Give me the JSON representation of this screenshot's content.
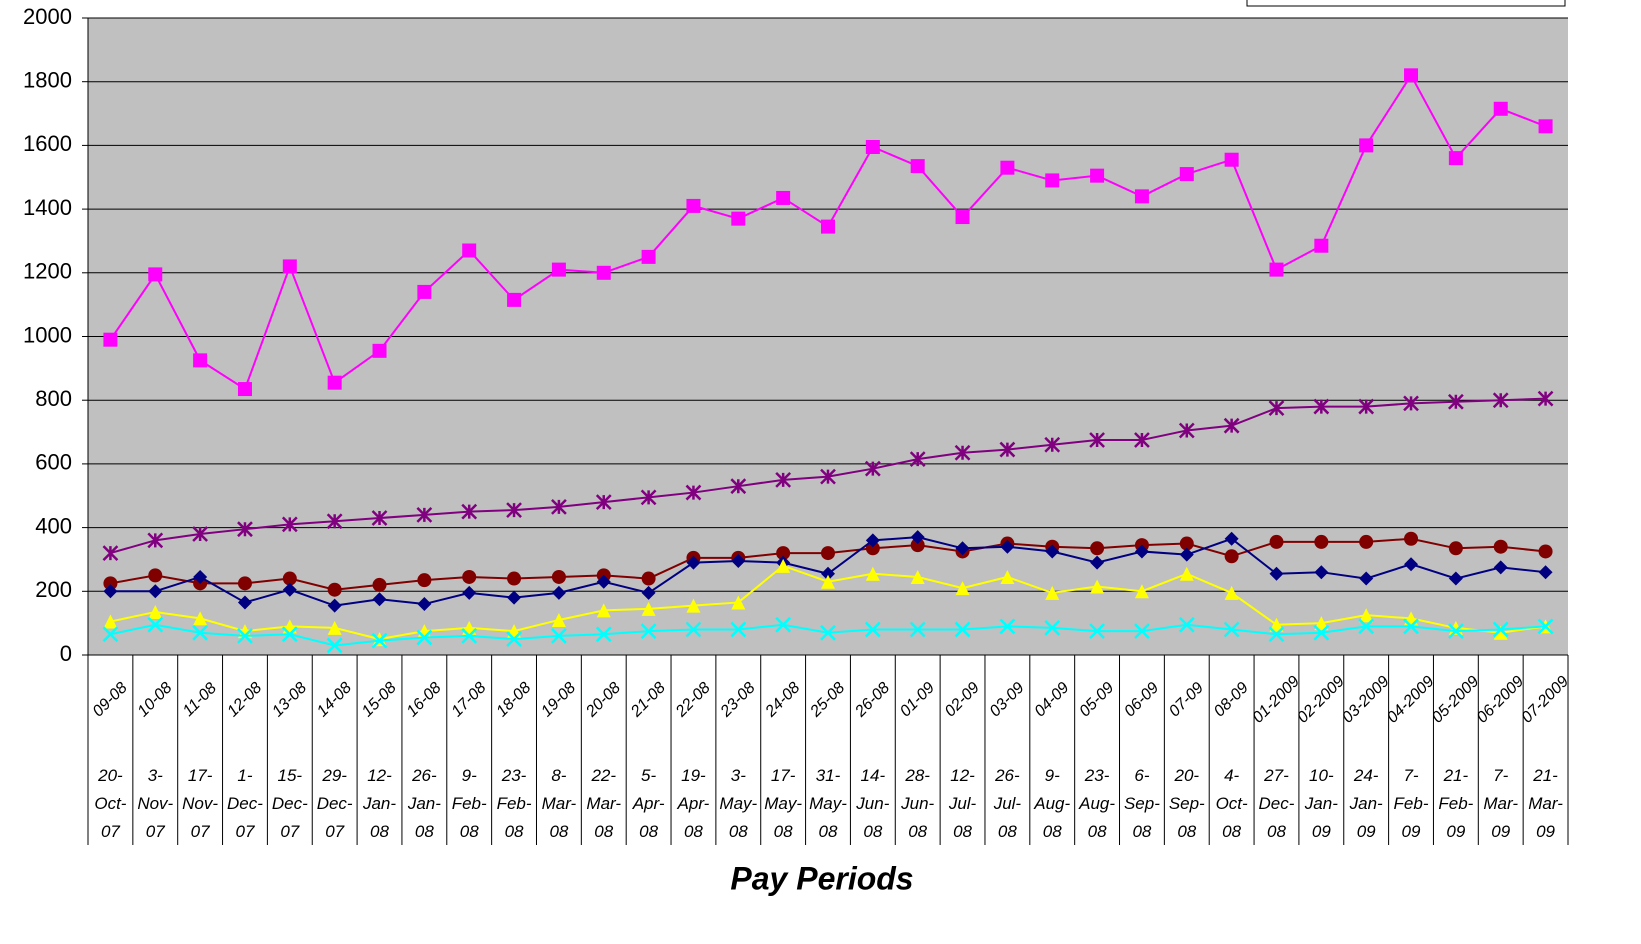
{
  "chart_data": {
    "type": "line",
    "x_axis_label": "Pay Periods",
    "categories": [
      "09-08",
      "10-08",
      "11-08",
      "12-08",
      "13-08",
      "14-08",
      "15-08",
      "16-08",
      "17-08",
      "18-08",
      "19-08",
      "20-08",
      "21-08",
      "22-08",
      "23-08",
      "24-08",
      "25-08",
      "26-08",
      "01-09",
      "02-09",
      "03-09",
      "04-09",
      "05-09",
      "06-09",
      "07-09",
      "08-09",
      "01-2009",
      "02-2009",
      "03-2009",
      "04-2009",
      "05-2009",
      "06-2009",
      "07-2009"
    ],
    "dates": [
      "20-Oct-07",
      "3-Nov-07",
      "17-Nov-07",
      "1-Dec-07",
      "15-Dec-07",
      "29-Dec-07",
      "12-Jan-08",
      "26-Jan-08",
      "9-Feb-08",
      "23-Feb-08",
      "8-Mar-08",
      "22-Mar-08",
      "5-Apr-08",
      "19-Apr-08",
      "3-May-08",
      "17-May-08",
      "31-May-08",
      "14-Jun-08",
      "28-Jun-08",
      "12-Jul-08",
      "26-Jul-08",
      "9-Aug-08",
      "23-Aug-08",
      "6-Sep-08",
      "20-Sep-08",
      "4-Oct-08",
      "27-Dec-08",
      "10-Jan-09",
      "24-Jan-09",
      "7-Feb-09",
      "21-Feb-09",
      "7-Mar-09",
      "21-Mar-09"
    ],
    "series": [
      {
        "color": "#ff00ff",
        "marker": "square",
        "values": [
          990,
          1195,
          925,
          835,
          1220,
          855,
          955,
          1140,
          1270,
          1115,
          1210,
          1200,
          1250,
          1410,
          1370,
          1435,
          1345,
          1595,
          1535,
          1375,
          1530,
          1490,
          1505,
          1440,
          1510,
          1555,
          1210,
          1285,
          1600,
          1820,
          1560,
          1715,
          1660
        ]
      },
      {
        "color": "#800080",
        "marker": "star",
        "values": [
          320,
          360,
          380,
          395,
          410,
          420,
          430,
          440,
          450,
          455,
          465,
          480,
          495,
          510,
          530,
          550,
          560,
          585,
          615,
          635,
          645,
          660,
          675,
          675,
          705,
          720,
          775,
          780,
          780,
          790,
          795,
          800,
          805
        ]
      },
      {
        "color": "#800000",
        "marker": "circle",
        "values": [
          225,
          250,
          225,
          225,
          240,
          205,
          220,
          235,
          245,
          240,
          245,
          250,
          240,
          305,
          305,
          320,
          320,
          335,
          345,
          325,
          350,
          340,
          335,
          345,
          350,
          310,
          355,
          355,
          355,
          365,
          335,
          340,
          325
        ]
      },
      {
        "color": "#000080",
        "marker": "diamond",
        "values": [
          200,
          200,
          245,
          165,
          205,
          155,
          175,
          160,
          195,
          180,
          195,
          230,
          195,
          290,
          295,
          290,
          255,
          360,
          370,
          335,
          340,
          325,
          290,
          325,
          315,
          365,
          255,
          260,
          240,
          285,
          240,
          275,
          260
        ]
      },
      {
        "color": "#ffff00",
        "marker": "triangle",
        "values": [
          105,
          135,
          115,
          75,
          90,
          85,
          50,
          75,
          85,
          75,
          110,
          140,
          145,
          155,
          165,
          280,
          230,
          255,
          245,
          210,
          245,
          195,
          215,
          200,
          255,
          195,
          95,
          100,
          125,
          115,
          85,
          70,
          90
        ]
      },
      {
        "color": "#00ffff",
        "marker": "x",
        "values": [
          65,
          95,
          70,
          60,
          65,
          30,
          45,
          55,
          60,
          50,
          60,
          65,
          75,
          80,
          80,
          95,
          70,
          80,
          80,
          80,
          90,
          85,
          75,
          75,
          95,
          80,
          65,
          70,
          90,
          90,
          75,
          80,
          90
        ]
      }
    ],
    "ylim": [
      0,
      2000
    ],
    "yticks": [
      0,
      200,
      400,
      600,
      800,
      1000,
      1200,
      1400,
      1600,
      1800,
      2000
    ],
    "grid": true,
    "plot_background": "#c0c0c0"
  }
}
